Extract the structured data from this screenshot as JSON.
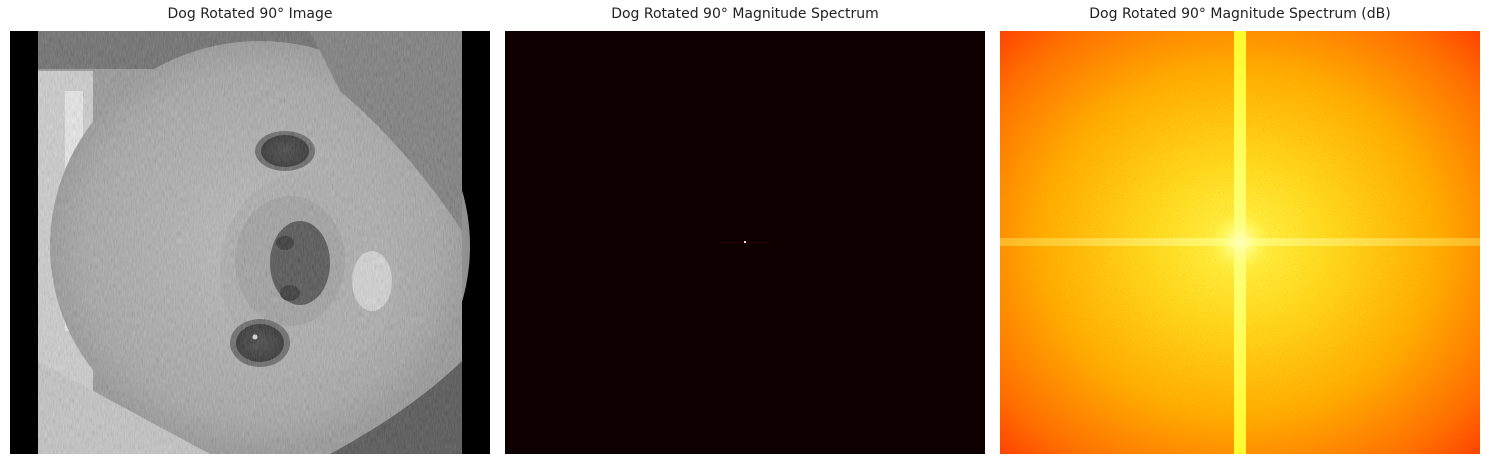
{
  "figure": {
    "panels": [
      {
        "title": "Dog Rotated 90° Image",
        "content": "grayscale rotated photo of a dog"
      },
      {
        "title": "Dog Rotated 90° Magnitude Spectrum",
        "content": "dark magnitude spectrum with bright center point"
      },
      {
        "title": "Dog Rotated 90° Magnitude Spectrum (dB)",
        "content": "log magnitude spectrum with yellow cross on orange-red noise"
      }
    ]
  },
  "colors": {
    "spectrum_background": "#0f0000",
    "db_center": "#ffff40",
    "db_mid": "#ffb000",
    "db_edge": "#ff3000"
  }
}
